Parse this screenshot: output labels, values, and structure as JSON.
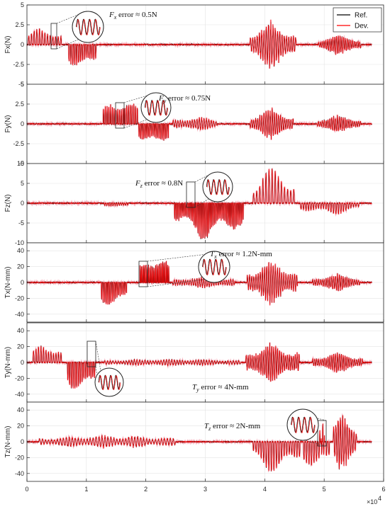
{
  "chart_data": {
    "type": "line",
    "x_axis": {
      "range": [
        0,
        60000
      ],
      "ticks": [
        0,
        10000,
        20000,
        30000,
        40000,
        50000,
        60000
      ],
      "tick_labels": [
        "0",
        "1",
        "2",
        "3",
        "4",
        "5",
        "6"
      ],
      "multiplier_base": "×10",
      "multiplier_exp": "4"
    },
    "legend": {
      "placement": "top-right",
      "entries": [
        {
          "label": "Ref.",
          "color": "#000000"
        },
        {
          "label": "Dev.",
          "color": "#ff0000"
        }
      ]
    },
    "grid": true,
    "colors": {
      "ref": "#000000",
      "dev": "#ff0000",
      "halo": "#f4a6b4"
    },
    "panels": [
      {
        "ylabel": "Fx(N)",
        "ylim": [
          -5,
          5
        ],
        "ticks": [
          -5,
          -2.5,
          0,
          2.5,
          5
        ],
        "tick_labels": [
          "-5",
          "-2.5",
          "0",
          "2.5",
          "5"
        ],
        "annotation": {
          "sym": "F",
          "sub": "x",
          "text": " error ≈ 0.5N"
        },
        "bursts": [
          {
            "start": 200,
            "end": 6000,
            "amp": 2.4,
            "type": "pos",
            "period": 450
          },
          {
            "start": 7000,
            "end": 11700,
            "amp": -3.9,
            "type": "neg",
            "period": 320
          },
          {
            "start": 37500,
            "end": 45300,
            "amp": 3.3,
            "type": "mixed",
            "period": 380
          },
          {
            "start": 49000,
            "end": 56200,
            "amp": 1.4,
            "type": "mixed",
            "period": 300
          }
        ]
      },
      {
        "ylabel": "Fy(N)",
        "ylim": [
          -5,
          5
        ],
        "ticks": [
          -5,
          -2.5,
          0,
          2.5,
          5
        ],
        "tick_labels": [
          "-5",
          "-2.5",
          "0",
          "2.5",
          "5"
        ],
        "annotation": {
          "sym": "F",
          "sub": "y",
          "text": " error ≈ 0.75N"
        },
        "bursts": [
          {
            "start": 12800,
            "end": 18600,
            "amp": 3.8,
            "type": "pos",
            "period": 300
          },
          {
            "start": 18800,
            "end": 23800,
            "amp": -3.4,
            "type": "neg",
            "period": 260
          },
          {
            "start": 24500,
            "end": 32000,
            "amp": 1.0,
            "type": "mixed",
            "period": 400
          },
          {
            "start": 37500,
            "end": 44800,
            "amp": -2.2,
            "type": "mixed",
            "period": 350
          },
          {
            "start": 48800,
            "end": 56200,
            "amp": -1.2,
            "type": "mixed",
            "period": 320
          }
        ]
      },
      {
        "ylabel": "Fz(N)",
        "ylim": [
          -10,
          10
        ],
        "ticks": [
          -10,
          -5,
          0,
          5,
          10
        ],
        "tick_labels": [
          "-10",
          "-5",
          "0",
          "5",
          "10"
        ],
        "annotation": {
          "sym": "F",
          "sub": "z",
          "text": " error ≈ 0.8N"
        },
        "bursts": [
          {
            "start": 13000,
            "end": 17000,
            "amp": -1.2,
            "type": "neg",
            "period": 350
          },
          {
            "start": 24800,
            "end": 36500,
            "amp": -9.5,
            "type": "neg",
            "period": 230
          },
          {
            "start": 38000,
            "end": 45200,
            "amp": 9.5,
            "type": "pos",
            "period": 520
          },
          {
            "start": 46000,
            "end": 56000,
            "amp": -3.0,
            "type": "neg",
            "period": 420
          }
        ]
      },
      {
        "ylabel": "Tx(N-mm)",
        "ylim": [
          -50,
          50
        ],
        "ticks": [
          -40,
          -20,
          0,
          20,
          40
        ],
        "tick_labels": [
          "-40",
          "-20",
          "0",
          "20",
          "40"
        ],
        "annotation": {
          "sym": "T",
          "sub": "x",
          "text": " error ≈ 1.2N-mm"
        },
        "bursts": [
          {
            "start": 12500,
            "end": 16800,
            "amp": -40,
            "type": "neg",
            "period": 260
          },
          {
            "start": 19000,
            "end": 24000,
            "amp": 42,
            "type": "pos",
            "period": 200
          },
          {
            "start": 24500,
            "end": 35000,
            "amp": -8,
            "type": "mixed",
            "period": 380
          },
          {
            "start": 37000,
            "end": 45500,
            "amp": 30,
            "type": "mixed",
            "period": 360
          },
          {
            "start": 48000,
            "end": 56000,
            "amp": 12,
            "type": "mixed",
            "period": 320
          }
        ]
      },
      {
        "ylabel": "Ty(N-mm)",
        "ylim": [
          -50,
          50
        ],
        "ticks": [
          -40,
          -20,
          0,
          20,
          40
        ],
        "tick_labels": [
          "-40",
          "-20",
          "0",
          "20",
          "40"
        ],
        "annotation": {
          "sym": "T",
          "sub": "y",
          "text": " error ≈ 4N-mm"
        },
        "bursts": [
          {
            "start": 1000,
            "end": 6000,
            "amp": 28,
            "type": "pos",
            "period": 420
          },
          {
            "start": 6800,
            "end": 11500,
            "amp": -45,
            "type": "neg",
            "period": 300
          },
          {
            "start": 13000,
            "end": 36000,
            "amp": 5,
            "type": "mixed",
            "period": 450
          },
          {
            "start": 36800,
            "end": 45800,
            "amp": 28,
            "type": "mixed",
            "period": 330
          },
          {
            "start": 48000,
            "end": 56500,
            "amp": 14,
            "type": "mixed",
            "period": 320
          }
        ]
      },
      {
        "ylabel": "Tz(N-mm)",
        "ylim": [
          -50,
          50
        ],
        "ticks": [
          -40,
          -20,
          0,
          20,
          40
        ],
        "tick_labels": [
          "-40",
          "-20",
          "0",
          "20",
          "40"
        ],
        "annotation": {
          "sym": "T",
          "sub": "z",
          "text": " error ≈ 2N-mm"
        },
        "bursts": [
          {
            "start": 2000,
            "end": 25000,
            "amp": 9,
            "type": "mixed",
            "period": 500
          },
          {
            "start": 38000,
            "end": 46000,
            "amp": -40,
            "type": "neg",
            "period": 430
          },
          {
            "start": 46500,
            "end": 51000,
            "amp": -42,
            "type": "neg",
            "period": 420
          },
          {
            "start": 49200,
            "end": 50200,
            "amp": 48,
            "type": "pos",
            "period": 250
          },
          {
            "start": 51500,
            "end": 55500,
            "amp": 44,
            "type": "mixed",
            "period": 380
          }
        ]
      }
    ]
  }
}
